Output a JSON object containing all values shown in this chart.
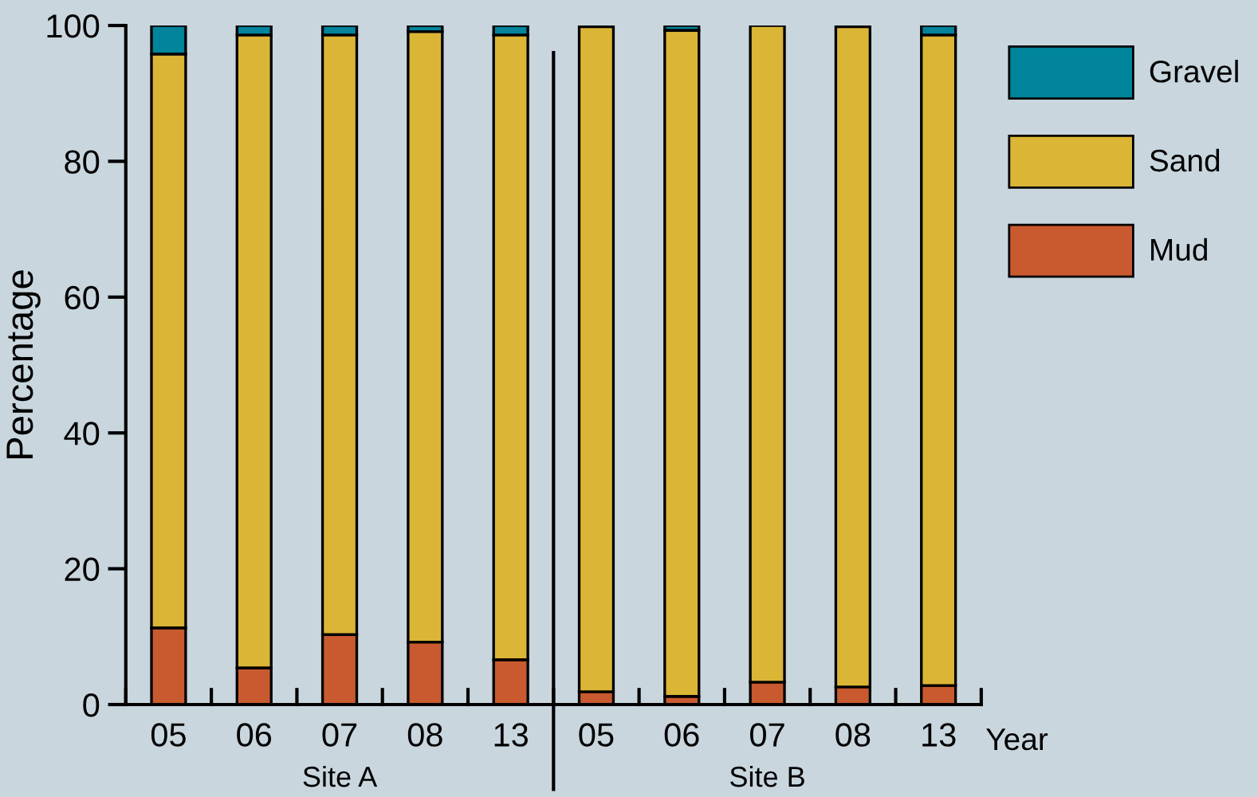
{
  "chart_data": {
    "type": "bar",
    "stacked": true,
    "ylabel": "Percentage",
    "xlabel": "Year",
    "categories": [
      "05",
      "06",
      "07",
      "08",
      "13",
      "05",
      "06",
      "07",
      "08",
      "13"
    ],
    "series": [
      {
        "name": "Mud",
        "color": "#c95a2f",
        "values": [
          11.3,
          5.4,
          10.3,
          9.2,
          6.6,
          1.9,
          1.2,
          3.3,
          2.6,
          2.8
        ]
      },
      {
        "name": "Sand",
        "color": "#dbb535",
        "values": [
          84.5,
          93.2,
          88.3,
          89.9,
          92.0,
          97.9,
          98.1,
          96.7,
          97.2,
          95.8
        ]
      },
      {
        "name": "Gravel",
        "color": "#00849c",
        "values": [
          4.2,
          1.4,
          1.4,
          0.9,
          1.4,
          null,
          0.7,
          null,
          null,
          1.4
        ]
      }
    ],
    "ylim": [
      0,
      100
    ],
    "yticks": [
      0,
      20,
      40,
      60,
      80,
      100
    ],
    "grid": false,
    "legend": "right",
    "annotations": [
      "Site A",
      "Site B"
    ]
  }
}
